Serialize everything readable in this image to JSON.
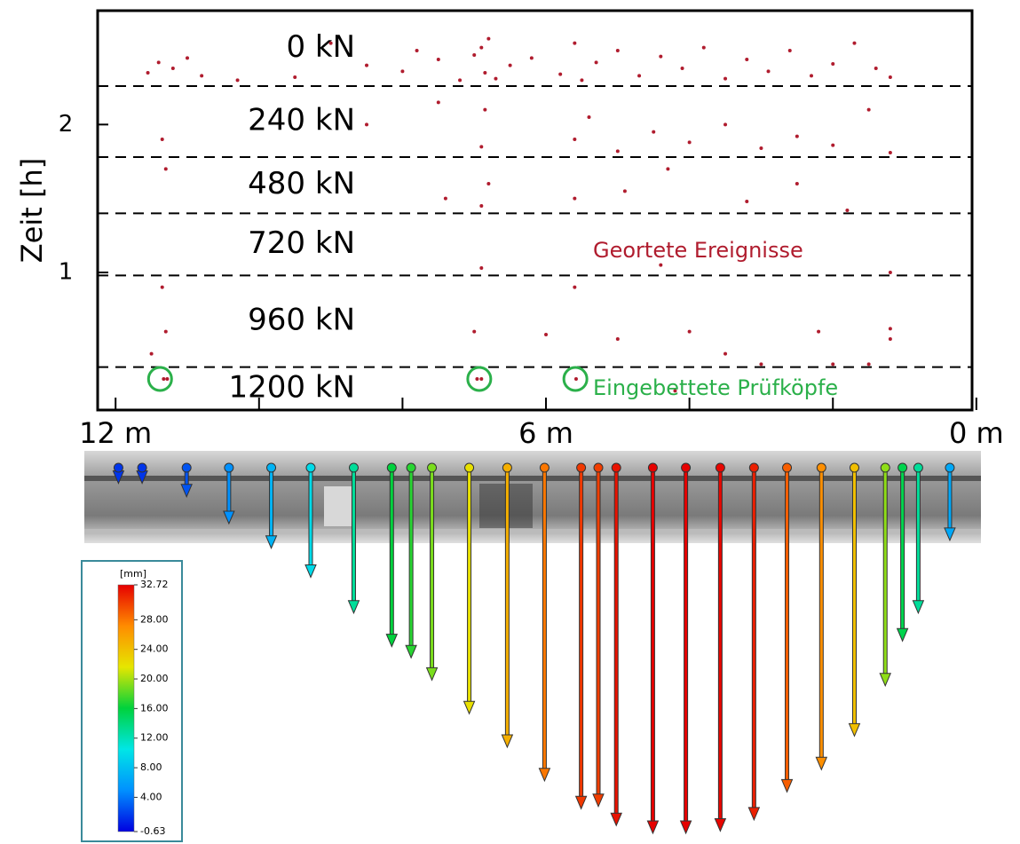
{
  "chart_data": [
    {
      "type": "scatter",
      "ylabel": "Zeit [h]",
      "xlim": [
        12.25,
        0.06
      ],
      "ylim": [
        0.07,
        2.77
      ],
      "xticks": [
        {
          "value": 12,
          "label": "12 m"
        },
        {
          "value": 6,
          "label": "6 m"
        },
        {
          "value": 0,
          "label": "0 m"
        }
      ],
      "xminorticks": [
        10,
        8,
        4,
        2
      ],
      "yticks": [
        1,
        2
      ],
      "color": "#b01c2e",
      "x": [
        11.55,
        11.4,
        11.2,
        11.0,
        10.8,
        10.3,
        9.5,
        9.0,
        8.5,
        8.0,
        7.8,
        7.5,
        7.2,
        7.0,
        6.9,
        6.85,
        6.8,
        6.7,
        6.5,
        6.2,
        5.8,
        5.6,
        5.5,
        5.3,
        5.0,
        4.7,
        4.4,
        4.1,
        3.8,
        3.5,
        3.2,
        2.9,
        2.6,
        2.3,
        2.0,
        1.7,
        1.4,
        1.2,
        6.9,
        6.85,
        5.6,
        5.4,
        5.0,
        4.5,
        4.0,
        3.5,
        3.0,
        2.5,
        2.0,
        1.5,
        1.2,
        7.5,
        8.5,
        11.35,
        6.9,
        6.8,
        5.6,
        4.9,
        3.2,
        2.5,
        1.8,
        4.3,
        7.4,
        11.3,
        6.9,
        5.6,
        11.35,
        1.2,
        4.4,
        11.3,
        7.0,
        6.0,
        5.0,
        4.0,
        3.5,
        2.2,
        1.2,
        1.2,
        11.5,
        11.33,
        11.28,
        6.96,
        6.9,
        5.58,
        3.0,
        2.0,
        1.5,
        4.2
      ],
      "values": [
        2.35,
        2.42,
        2.38,
        2.45,
        2.33,
        2.3,
        2.32,
        2.55,
        2.4,
        2.36,
        2.5,
        2.44,
        2.3,
        2.47,
        2.52,
        2.35,
        2.58,
        2.31,
        2.4,
        2.45,
        2.34,
        2.55,
        2.3,
        2.42,
        2.5,
        2.33,
        2.46,
        2.38,
        2.52,
        2.31,
        2.44,
        2.36,
        2.5,
        2.33,
        2.41,
        2.55,
        2.38,
        2.32,
        1.85,
        2.1,
        1.9,
        2.05,
        1.82,
        1.95,
        1.88,
        2.0,
        1.84,
        1.92,
        1.86,
        2.1,
        1.81,
        2.15,
        2.0,
        1.9,
        1.45,
        1.6,
        1.5,
        1.55,
        1.48,
        1.6,
        1.42,
        1.7,
        1.5,
        1.7,
        1.03,
        0.9,
        0.9,
        1.0,
        1.05,
        0.6,
        0.6,
        0.58,
        0.55,
        0.6,
        0.45,
        0.6,
        0.55,
        0.62,
        0.45,
        0.28,
        0.28,
        0.28,
        0.28,
        0.28,
        0.38,
        0.38,
        0.38,
        0.2
      ],
      "load_steps": [
        "0 kN",
        "240 kN",
        "480 kN",
        "720 kN",
        "960 kN",
        "1200 kN"
      ],
      "dividers": [
        2.26,
        1.78,
        1.4,
        0.98,
        0.36
      ],
      "sensors": {
        "x": [
          11.38,
          6.93,
          5.59
        ],
        "values": [
          0.28,
          0.28,
          0.28
        ],
        "color": "#2bb04a"
      },
      "annotations": [
        {
          "text": "Geortete Ereignisse",
          "color": "#b01c2e"
        },
        {
          "text": "Eingebettete Prüfköpfe",
          "color": "#2bb04a"
        }
      ]
    },
    {
      "type": "arrows",
      "xlim": [
        12.25,
        0.06
      ],
      "x": [
        11.96,
        11.63,
        11.01,
        10.42,
        9.83,
        9.28,
        8.68,
        8.15,
        7.88,
        7.59,
        7.07,
        6.54,
        6.02,
        5.51,
        5.27,
        5.02,
        4.51,
        4.05,
        3.57,
        3.1,
        2.64,
        2.16,
        1.7,
        1.27,
        1.03,
        0.81,
        0.37
      ],
      "values": [
        1.4,
        1.4,
        2.6,
        5,
        7.2,
        9.8,
        13,
        16,
        17,
        19,
        22,
        25,
        28,
        30.5,
        30.3,
        32,
        32.7,
        32.7,
        32.5,
        31.5,
        29,
        27,
        24,
        19.5,
        15.5,
        13,
        6.5
      ],
      "colorbar": {
        "label": "[mm]",
        "lim": [
          -0.63,
          32.72
        ],
        "ticks": [
          32.72,
          {
            "value": 28,
            "label": "28.00"
          },
          {
            "value": 24,
            "label": "24.00"
          },
          {
            "value": 20,
            "label": "20.00"
          },
          {
            "value": 16,
            "label": "16.00"
          },
          {
            "value": 12,
            "label": "12.00"
          },
          {
            "value": 8,
            "label": "8.00"
          },
          {
            "value": 4,
            "label": "4.00"
          },
          -0.63
        ],
        "colormap": [
          "#0000e0",
          "#0090ff",
          "#00e6e6",
          "#00d23c",
          "#e6e600",
          "#ff8c00",
          "#e60000"
        ]
      }
    }
  ]
}
